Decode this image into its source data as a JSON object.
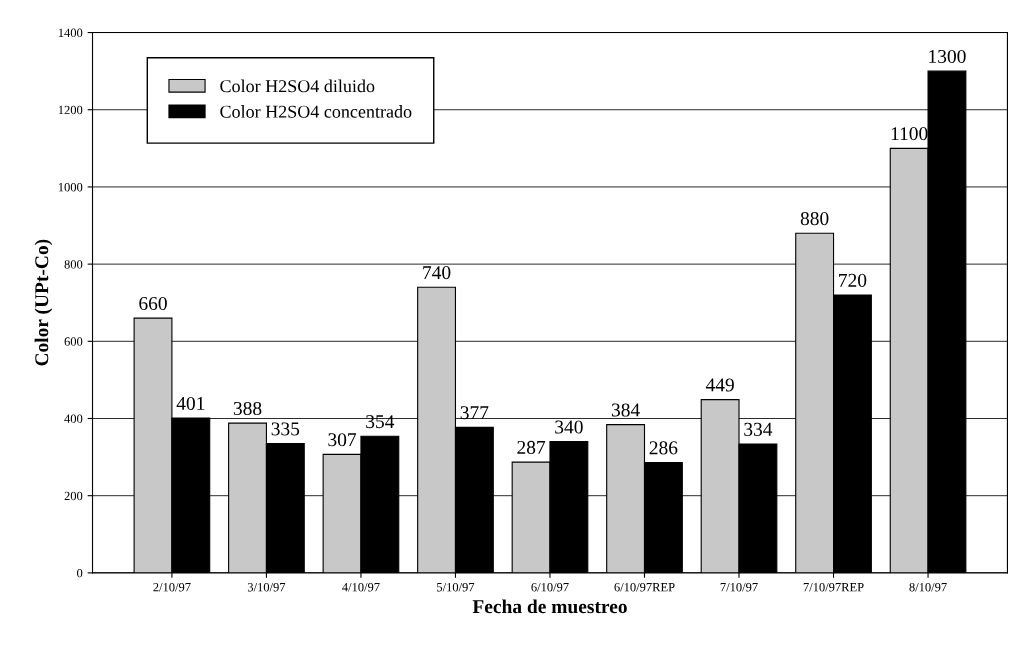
{
  "chart_data": {
    "type": "bar",
    "xlabel": "Fecha de muestreo",
    "ylabel": "Color (UPt-Co)",
    "categories": [
      "2/10/97",
      "3/10/97",
      "4/10/97",
      "5/10/97",
      "6/10/97",
      "6/10/97REP",
      "7/10/97",
      "7/10/97REP",
      "8/10/97"
    ],
    "series": [
      {
        "name": "Color H2SO4 diluido",
        "color": "#c8c8c8",
        "values": [
          660,
          388,
          307,
          740,
          287,
          384,
          449,
          880,
          1100
        ]
      },
      {
        "name": "Color H2SO4 concentrado",
        "color": "#000000",
        "values": [
          401,
          335,
          354,
          377,
          340,
          286,
          334,
          720,
          1300
        ]
      }
    ],
    "ylim": [
      0,
      1400
    ],
    "yticks": [
      0,
      200,
      400,
      600,
      800,
      1000,
      1200,
      1400
    ],
    "grid": "y",
    "legend": "top left",
    "data_labels": true
  }
}
